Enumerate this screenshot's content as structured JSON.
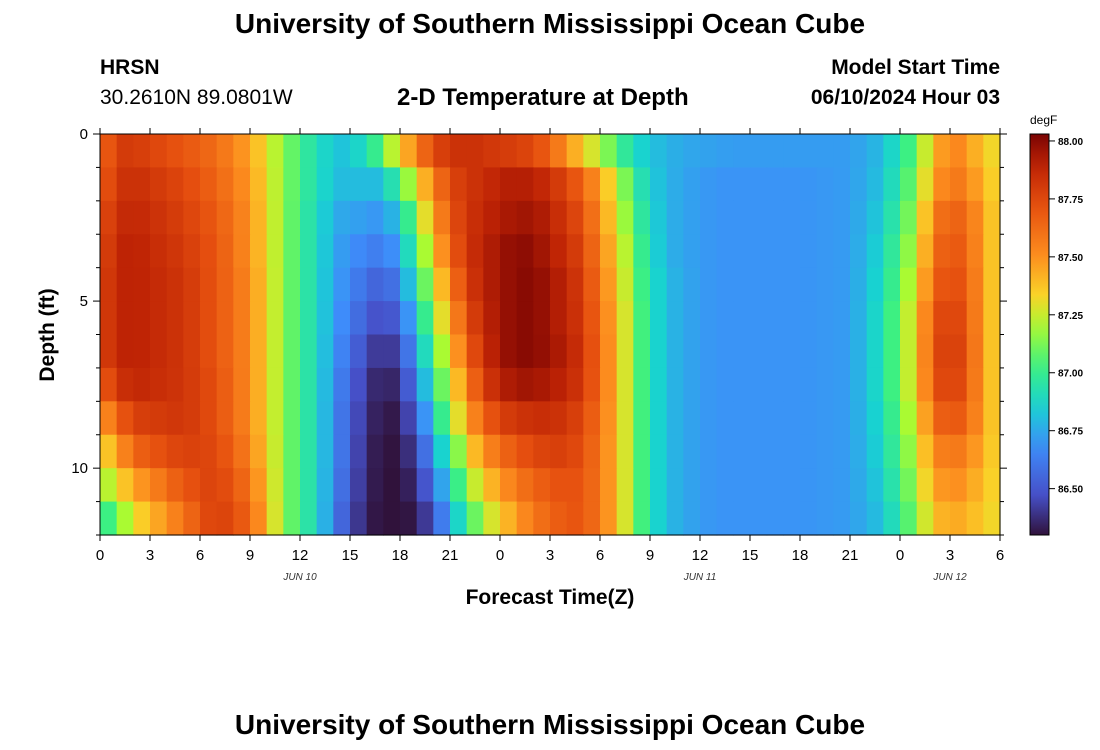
{
  "header": {
    "title": "University of Southern Mississippi Ocean Cube",
    "station": "HRSN",
    "coords": "30.2610N  89.0801W",
    "subtitle": "2-D Temperature at Depth",
    "start_label": "Model Start Time",
    "start_value": "06/10/2024 Hour 03"
  },
  "footer": {
    "title": "University of Southern Mississippi Ocean Cube"
  },
  "chart_data": {
    "type": "heatmap",
    "xlabel": "Forecast Time(Z)",
    "ylabel": "Depth (ft)",
    "x_range_hours": [
      0,
      54
    ],
    "y_range_ft": [
      0,
      12
    ],
    "y_inverted": true,
    "x_ticks": [
      {
        "h": 0,
        "label": "0"
      },
      {
        "h": 3,
        "label": "3"
      },
      {
        "h": 6,
        "label": "6"
      },
      {
        "h": 9,
        "label": "9"
      },
      {
        "h": 12,
        "label": "12"
      },
      {
        "h": 15,
        "label": "15"
      },
      {
        "h": 18,
        "label": "18"
      },
      {
        "h": 21,
        "label": "21"
      },
      {
        "h": 24,
        "label": "0"
      },
      {
        "h": 27,
        "label": "3"
      },
      {
        "h": 30,
        "label": "6"
      },
      {
        "h": 33,
        "label": "9"
      },
      {
        "h": 36,
        "label": "12"
      },
      {
        "h": 39,
        "label": "15"
      },
      {
        "h": 42,
        "label": "18"
      },
      {
        "h": 45,
        "label": "21"
      },
      {
        "h": 48,
        "label": "0"
      },
      {
        "h": 51,
        "label": "3"
      },
      {
        "h": 54,
        "label": "6"
      }
    ],
    "date_labels": [
      {
        "h": 12,
        "label": "JUN 10"
      },
      {
        "h": 36,
        "label": "JUN 11"
      },
      {
        "h": 51,
        "label": "JUN 12"
      }
    ],
    "y_ticks": [
      {
        "v": 0,
        "label": "0"
      },
      {
        "v": 5,
        "label": "5"
      },
      {
        "v": 10,
        "label": "10"
      }
    ],
    "colorbar": {
      "unit": "degF",
      "min": 86.3,
      "max": 88.03,
      "ticks": [
        "88.00",
        "87.75",
        "87.50",
        "87.25",
        "87.00",
        "86.75",
        "86.50"
      ]
    },
    "depth_layers_ft": [
      0.5,
      1.5,
      2.5,
      3.5,
      4.5,
      5.5,
      6.5,
      7.5,
      8.5,
      9.5,
      10.5,
      11.5
    ],
    "time_anchors_hours": [
      0,
      1,
      2,
      5,
      7,
      9,
      11,
      13,
      14.5,
      16,
      17,
      18,
      19,
      20,
      21,
      22,
      23,
      24,
      25,
      26,
      27,
      28,
      29,
      30,
      31,
      32,
      33,
      34,
      35,
      36,
      37,
      38,
      39,
      42,
      45,
      47,
      49,
      50,
      51,
      52,
      53,
      54
    ],
    "temperature_degF": [
      [
        87.6,
        87.8,
        87.8,
        87.7,
        87.62,
        87.45,
        87.15,
        86.9,
        86.82,
        86.9,
        87.1,
        87.35,
        87.55,
        87.75,
        87.82,
        87.85,
        87.82,
        87.8,
        87.78,
        87.75,
        87.65,
        87.5,
        87.35,
        87.2,
        87.05,
        86.9,
        86.82,
        86.78,
        86.75,
        86.74,
        86.73,
        86.72,
        86.72,
        86.72,
        86.72,
        86.8,
        87.1,
        87.4,
        87.55,
        87.5,
        87.35,
        87.3
      ],
      [
        87.65,
        87.82,
        87.85,
        87.75,
        87.65,
        87.48,
        87.15,
        86.9,
        86.8,
        86.8,
        86.8,
        87.05,
        87.3,
        87.55,
        87.75,
        87.82,
        87.85,
        87.9,
        87.92,
        87.9,
        87.85,
        87.75,
        87.65,
        87.45,
        87.25,
        87.0,
        86.85,
        86.78,
        86.74,
        86.72,
        86.7,
        86.7,
        86.7,
        86.7,
        86.72,
        86.82,
        87.15,
        87.45,
        87.6,
        87.55,
        87.4,
        87.3
      ],
      [
        87.7,
        87.85,
        87.88,
        87.78,
        87.68,
        87.5,
        87.15,
        86.88,
        86.75,
        86.72,
        86.7,
        86.85,
        87.15,
        87.45,
        87.7,
        87.82,
        87.88,
        87.92,
        87.95,
        87.95,
        87.9,
        87.8,
        87.72,
        87.5,
        87.3,
        87.05,
        86.88,
        86.78,
        86.74,
        86.72,
        86.7,
        86.7,
        86.7,
        86.7,
        86.72,
        86.85,
        87.2,
        87.55,
        87.68,
        87.62,
        87.45,
        87.3
      ],
      [
        87.72,
        87.88,
        87.9,
        87.8,
        87.7,
        87.5,
        87.15,
        86.88,
        86.72,
        86.65,
        86.62,
        86.75,
        87.05,
        87.35,
        87.65,
        87.82,
        87.9,
        87.95,
        88.0,
        87.98,
        87.92,
        87.85,
        87.75,
        87.55,
        87.35,
        87.1,
        86.9,
        86.78,
        86.74,
        86.72,
        86.7,
        86.7,
        86.7,
        86.7,
        86.72,
        86.88,
        87.25,
        87.6,
        87.72,
        87.65,
        87.45,
        87.3
      ],
      [
        87.75,
        87.88,
        87.9,
        87.82,
        87.7,
        87.52,
        87.15,
        86.88,
        86.7,
        86.58,
        86.52,
        86.65,
        86.95,
        87.25,
        87.55,
        87.78,
        87.9,
        87.95,
        88.0,
        88.0,
        87.95,
        87.88,
        87.78,
        87.58,
        87.38,
        87.12,
        86.92,
        86.8,
        86.75,
        86.72,
        86.7,
        86.7,
        86.7,
        86.7,
        86.72,
        86.9,
        87.3,
        87.65,
        87.75,
        87.68,
        87.45,
        87.3
      ],
      [
        87.75,
        87.88,
        87.9,
        87.82,
        87.7,
        87.52,
        87.15,
        86.88,
        86.68,
        86.52,
        86.45,
        86.55,
        86.85,
        87.15,
        87.45,
        87.72,
        87.88,
        87.95,
        88.0,
        88.0,
        87.95,
        87.88,
        87.8,
        87.6,
        87.4,
        87.15,
        86.92,
        86.8,
        86.75,
        86.72,
        86.7,
        86.7,
        86.7,
        86.7,
        86.72,
        86.92,
        87.35,
        87.7,
        87.8,
        87.7,
        87.45,
        87.3
      ],
      [
        87.75,
        87.88,
        87.9,
        87.82,
        87.7,
        87.52,
        87.15,
        86.88,
        86.65,
        86.45,
        86.38,
        86.45,
        86.75,
        87.05,
        87.35,
        87.65,
        87.85,
        87.95,
        88.0,
        88.0,
        87.96,
        87.9,
        87.82,
        87.62,
        87.4,
        87.15,
        86.92,
        86.8,
        86.75,
        86.72,
        86.7,
        86.7,
        86.7,
        86.7,
        86.72,
        86.92,
        87.35,
        87.72,
        87.82,
        87.72,
        87.45,
        87.3
      ],
      [
        87.65,
        87.82,
        87.88,
        87.82,
        87.72,
        87.52,
        87.15,
        86.88,
        86.62,
        86.4,
        86.33,
        86.38,
        86.65,
        86.95,
        87.25,
        87.55,
        87.78,
        87.9,
        87.95,
        87.95,
        87.92,
        87.88,
        87.8,
        87.62,
        87.4,
        87.15,
        86.92,
        86.8,
        86.75,
        86.72,
        86.7,
        86.7,
        86.7,
        86.7,
        86.72,
        86.92,
        87.35,
        87.7,
        87.8,
        87.7,
        87.45,
        87.3
      ],
      [
        87.45,
        87.65,
        87.78,
        87.82,
        87.72,
        87.52,
        87.15,
        86.88,
        86.6,
        86.38,
        86.31,
        86.33,
        86.55,
        86.85,
        87.15,
        87.45,
        87.65,
        87.78,
        87.82,
        87.85,
        87.85,
        87.82,
        87.75,
        87.6,
        87.4,
        87.15,
        86.92,
        86.8,
        86.75,
        86.72,
        86.7,
        86.7,
        86.7,
        86.7,
        86.72,
        86.9,
        87.3,
        87.62,
        87.72,
        87.65,
        87.45,
        87.3
      ],
      [
        87.3,
        87.45,
        87.65,
        87.78,
        87.75,
        87.55,
        87.15,
        86.88,
        86.6,
        86.36,
        86.3,
        86.31,
        86.45,
        86.72,
        87.0,
        87.3,
        87.5,
        87.62,
        87.7,
        87.75,
        87.78,
        87.78,
        87.72,
        87.58,
        87.4,
        87.15,
        86.92,
        86.8,
        86.75,
        86.72,
        86.7,
        86.7,
        86.7,
        86.7,
        86.72,
        86.88,
        87.25,
        87.52,
        87.6,
        87.55,
        87.42,
        87.3
      ],
      [
        87.15,
        87.3,
        87.45,
        87.7,
        87.78,
        87.6,
        87.15,
        86.88,
        86.58,
        86.35,
        86.3,
        86.3,
        86.38,
        86.6,
        86.88,
        87.15,
        87.35,
        87.48,
        87.58,
        87.65,
        87.7,
        87.72,
        87.7,
        87.58,
        87.4,
        87.15,
        86.92,
        86.8,
        86.75,
        86.72,
        86.7,
        86.7,
        86.7,
        86.7,
        86.72,
        86.85,
        87.2,
        87.45,
        87.52,
        87.48,
        87.38,
        87.3
      ],
      [
        86.95,
        87.1,
        87.3,
        87.6,
        87.8,
        87.65,
        87.15,
        86.88,
        86.55,
        86.33,
        86.3,
        86.3,
        86.32,
        86.5,
        86.75,
        87.0,
        87.2,
        87.35,
        87.48,
        87.58,
        87.65,
        87.7,
        87.7,
        87.58,
        87.4,
        87.15,
        86.92,
        86.8,
        86.75,
        86.72,
        86.7,
        86.7,
        86.7,
        86.7,
        86.72,
        86.82,
        87.15,
        87.38,
        87.45,
        87.42,
        87.35,
        87.3
      ]
    ]
  }
}
